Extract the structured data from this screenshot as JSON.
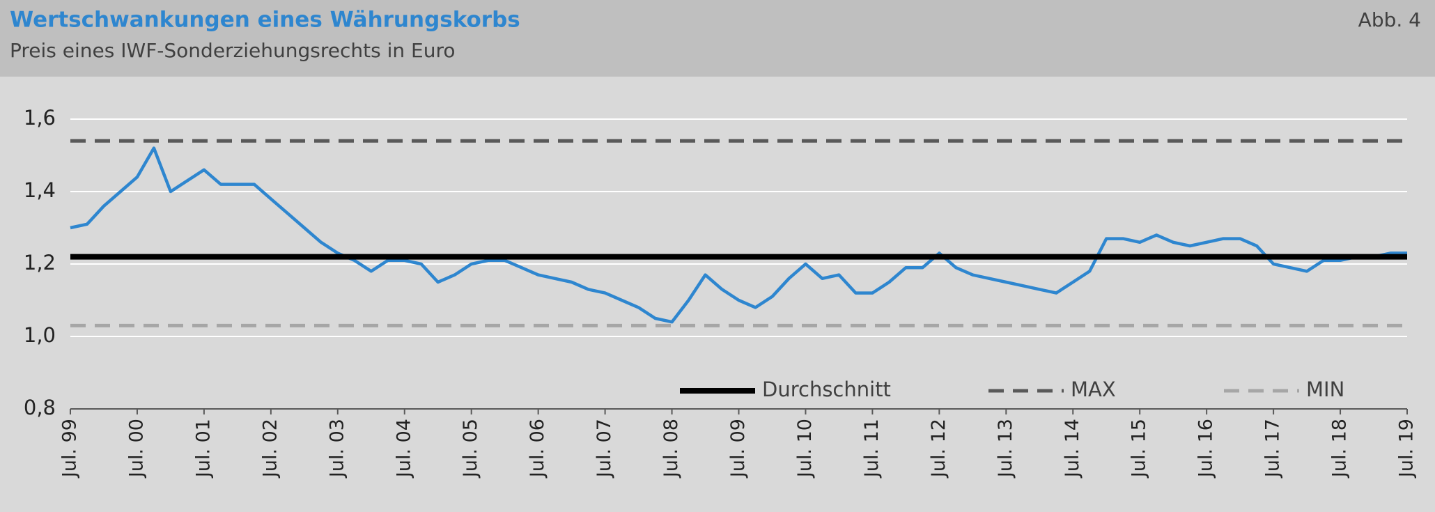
{
  "chart_data": {
    "type": "line",
    "title": "Wertschwankungen eines Währungskorbs",
    "subtitle": "Preis eines IWF-Sonderziehungsrechts in Euro",
    "figure_label": "Abb. 4",
    "x": [
      "1999-07",
      "1999-10",
      "2000-01",
      "2000-04",
      "2000-07",
      "2000-10",
      "2001-01",
      "2001-04",
      "2001-07",
      "2001-10",
      "2002-01",
      "2002-04",
      "2002-07",
      "2002-10",
      "2003-01",
      "2003-04",
      "2003-07",
      "2003-10",
      "2004-01",
      "2004-04",
      "2004-07",
      "2004-10",
      "2005-01",
      "2005-04",
      "2005-07",
      "2005-10",
      "2006-01",
      "2006-04",
      "2006-07",
      "2006-10",
      "2007-01",
      "2007-04",
      "2007-07",
      "2007-10",
      "2008-01",
      "2008-04",
      "2008-07",
      "2008-10",
      "2009-01",
      "2009-04",
      "2009-07",
      "2009-10",
      "2010-01",
      "2010-04",
      "2010-07",
      "2010-10",
      "2011-01",
      "2011-04",
      "2011-07",
      "2011-10",
      "2012-01",
      "2012-04",
      "2012-07",
      "2012-10",
      "2013-01",
      "2013-04",
      "2013-07",
      "2013-10",
      "2014-01",
      "2014-04",
      "2014-07",
      "2014-10",
      "2015-01",
      "2015-04",
      "2015-07",
      "2015-10",
      "2016-01",
      "2016-04",
      "2016-07",
      "2016-10",
      "2017-01",
      "2017-04",
      "2017-07",
      "2017-10",
      "2018-01",
      "2018-04",
      "2018-07",
      "2018-10",
      "2019-01",
      "2019-04",
      "2019-07"
    ],
    "series": [
      {
        "color": "#2e86cf",
        "values": [
          1.3,
          1.31,
          1.36,
          1.4,
          1.44,
          1.52,
          1.4,
          1.43,
          1.46,
          1.42,
          1.42,
          1.42,
          1.38,
          1.34,
          1.3,
          1.26,
          1.23,
          1.21,
          1.18,
          1.21,
          1.21,
          1.2,
          1.15,
          1.17,
          1.2,
          1.21,
          1.21,
          1.19,
          1.17,
          1.16,
          1.15,
          1.13,
          1.12,
          1.1,
          1.08,
          1.05,
          1.04,
          1.1,
          1.17,
          1.13,
          1.1,
          1.08,
          1.11,
          1.16,
          1.2,
          1.16,
          1.17,
          1.12,
          1.12,
          1.15,
          1.19,
          1.19,
          1.23,
          1.19,
          1.17,
          1.16,
          1.15,
          1.14,
          1.13,
          1.12,
          1.15,
          1.18,
          1.27,
          1.27,
          1.26,
          1.28,
          1.26,
          1.25,
          1.26,
          1.27,
          1.27,
          1.25,
          1.2,
          1.19,
          1.18,
          1.21,
          1.21,
          1.22,
          1.22,
          1.23,
          1.23
        ]
      }
    ],
    "reference_lines": [
      {
        "name": "Durchschnitt",
        "value": 1.22,
        "color": "#000000",
        "style": "solid"
      },
      {
        "name": "MAX",
        "value": 1.54,
        "color": "#595959",
        "style": "dashed"
      },
      {
        "name": "MIN",
        "value": 1.03,
        "color": "#a6a6a6",
        "style": "dashed"
      }
    ],
    "xlim": [
      "1999-07",
      "2019-07"
    ],
    "xticks": [
      {
        "value": "1999-07",
        "label": "Jul. 99"
      },
      {
        "value": "2000-07",
        "label": "Jul. 00"
      },
      {
        "value": "2001-07",
        "label": "Jul. 01"
      },
      {
        "value": "2002-07",
        "label": "Jul. 02"
      },
      {
        "value": "2003-07",
        "label": "Jul. 03"
      },
      {
        "value": "2004-07",
        "label": "Jul. 04"
      },
      {
        "value": "2005-07",
        "label": "Jul. 05"
      },
      {
        "value": "2006-07",
        "label": "Jul. 06"
      },
      {
        "value": "2007-07",
        "label": "Jul. 07"
      },
      {
        "value": "2008-07",
        "label": "Jul. 08"
      },
      {
        "value": "2009-07",
        "label": "Jul. 09"
      },
      {
        "value": "2010-07",
        "label": "Jul. 10"
      },
      {
        "value": "2011-07",
        "label": "Jul. 11"
      },
      {
        "value": "2012-07",
        "label": "Jul. 12"
      },
      {
        "value": "2013-07",
        "label": "Jul. 13"
      },
      {
        "value": "2014-07",
        "label": "Jul. 14"
      },
      {
        "value": "2015-07",
        "label": "Jul. 15"
      },
      {
        "value": "2016-07",
        "label": "Jul. 16"
      },
      {
        "value": "2017-07",
        "label": "Jul. 17"
      },
      {
        "value": "2018-07",
        "label": "Jul. 18"
      },
      {
        "value": "2019-07",
        "label": "Jul. 19"
      }
    ],
    "ylim": [
      0.8,
      1.6
    ],
    "yticks": [
      {
        "value": 0.8,
        "label": "0,8"
      },
      {
        "value": 1.0,
        "label": "1,0"
      },
      {
        "value": 1.2,
        "label": "1,2"
      },
      {
        "value": 1.4,
        "label": "1,4"
      },
      {
        "value": 1.6,
        "label": "1,6"
      }
    ],
    "grid": true
  }
}
